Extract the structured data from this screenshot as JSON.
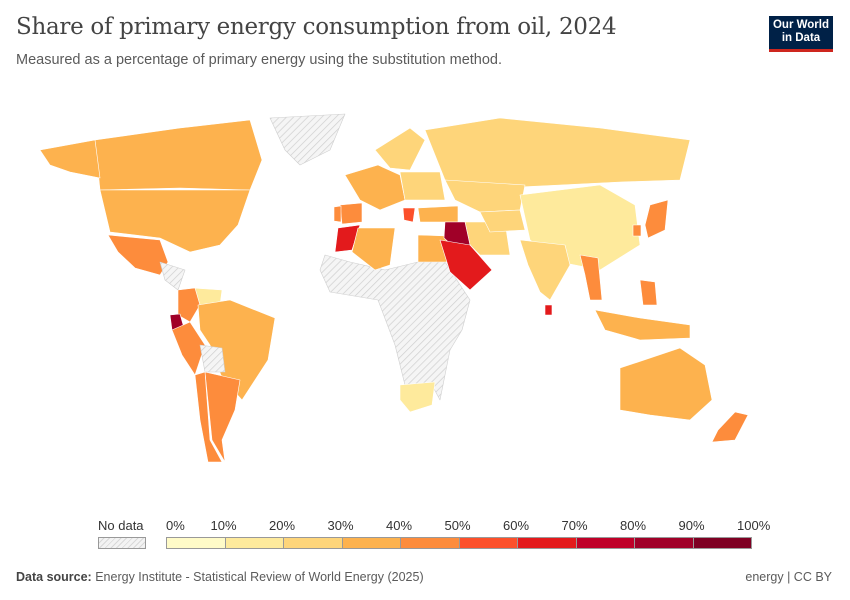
{
  "header": {
    "title": "Share of primary energy consumption from oil, 2024",
    "subtitle": "Measured as a percentage of primary energy using the substitution method.",
    "logo": "Our World in Data"
  },
  "legend": {
    "no_data_label": "No data",
    "ticks": [
      "0%",
      "10%",
      "20%",
      "30%",
      "40%",
      "50%",
      "60%",
      "70%",
      "80%",
      "90%",
      "100%"
    ],
    "colors": [
      "#fffbc8",
      "#feea9c",
      "#fed57a",
      "#fdb24e",
      "#fd8c3c",
      "#fc502b",
      "#e31a1c",
      "#bf0028",
      "#a00028",
      "#7e0023"
    ],
    "no_data_color": "#eeeeee"
  },
  "map_fills": {
    "Canada": 32,
    "United States": 35,
    "Alaska": 35,
    "Greenland": null,
    "Mexico": 45,
    "Central America": null,
    "Venezuela": 18,
    "Colombia": 42,
    "Ecuador": 82,
    "Peru": 48,
    "Brazil": 36,
    "Bolivia": null,
    "Argentina": 44,
    "Chile": 46,
    "Africa other": null,
    "Morocco": 65,
    "Algeria": 34,
    "Egypt": 36,
    "South Africa": 15,
    "Western Europe": 35,
    "Spain": 42,
    "Iberia Portugal": 44,
    "Scandinavia": 24,
    "Eastern Europe": 22,
    "Greece": 55,
    "Russia": 22,
    "Kazakhstan": 20,
    "Turkey": 32,
    "Iran": 26,
    "Iraq": 85,
    "Saudi Arabia": 64,
    "Central Asia": 22,
    "China": 15,
    "India": 25,
    "Japan": 40,
    "South Korea": 42,
    "Thailand": 42,
    "Philippines": 45,
    "Indonesia": 32,
    "Sri Lanka": 60,
    "Australia": 34,
    "New Zealand": 40
  },
  "footer": {
    "source_label": "Data source:",
    "source": "Energy Institute - Statistical Review of World Energy (2025)",
    "license": "energy | CC BY"
  }
}
